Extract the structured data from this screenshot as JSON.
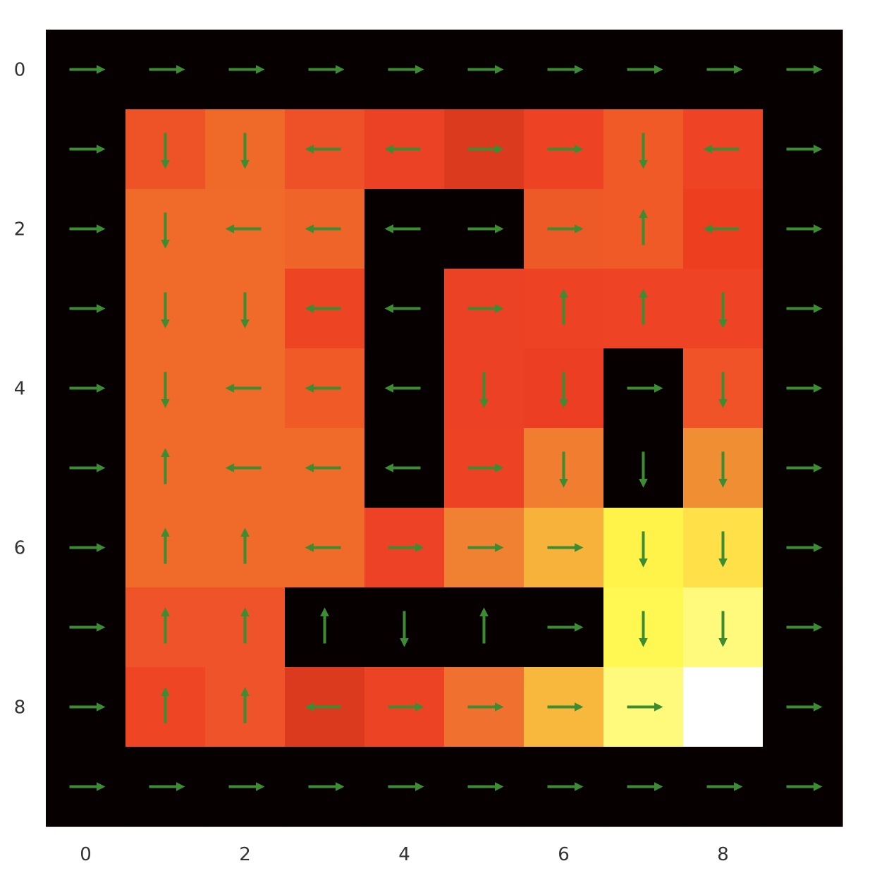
{
  "chart_data": {
    "type": "heatmap",
    "title": "",
    "xlabel": "",
    "ylabel": "",
    "grid": false,
    "rows": 10,
    "cols": 10,
    "x_ticks": [
      "0",
      "2",
      "4",
      "6",
      "8"
    ],
    "y_ticks": [
      "0",
      "2",
      "4",
      "6",
      "8"
    ],
    "arrow_color": "#3c8c32",
    "colors": [
      [
        "#070000",
        "#070000",
        "#070000",
        "#070000",
        "#070000",
        "#070000",
        "#070000",
        "#070000",
        "#070000",
        "#070000"
      ],
      [
        "#070000",
        "#ee5227",
        "#ef6a29",
        "#ee5128",
        "#eb4125",
        "#dc3a1f",
        "#ed4324",
        "#ef5a27",
        "#ee4425",
        "#070000"
      ],
      [
        "#070000",
        "#f06a29",
        "#f06a29",
        "#ef6529",
        "#070000",
        "#070000",
        "#ee5a27",
        "#ef5a27",
        "#ed3f20",
        "#070000"
      ],
      [
        "#070000",
        "#f06a29",
        "#f06a29",
        "#ed4424",
        "#070000",
        "#eb4125",
        "#ed4224",
        "#ee4325",
        "#ee4425",
        "#070000"
      ],
      [
        "#070000",
        "#f06a29",
        "#f06a29",
        "#ef5a27",
        "#070000",
        "#ec4124",
        "#eb3e22",
        "#070000",
        "#ef5327",
        "#070000"
      ],
      [
        "#070000",
        "#f06a29",
        "#f06a29",
        "#f06a29",
        "#070000",
        "#ed4224",
        "#f07d30",
        "#070000",
        "#f08e34",
        "#070000"
      ],
      [
        "#070000",
        "#f06a29",
        "#f06a29",
        "#f06a29",
        "#ed4225",
        "#f08032",
        "#f7b23c",
        "#fff349",
        "#ffe049",
        "#070000"
      ],
      [
        "#070000",
        "#ef5329",
        "#ef5329",
        "#070000",
        "#070000",
        "#070000",
        "#070000",
        "#fff852",
        "#fffa7b",
        "#070000"
      ],
      [
        "#070000",
        "#ee4525",
        "#ef5329",
        "#db3a1e",
        "#ed4325",
        "#f07030",
        "#f7b83d",
        "#fffa7b",
        "#ffffff",
        "#070000"
      ],
      [
        "#070000",
        "#070000",
        "#070000",
        "#070000",
        "#070000",
        "#070000",
        "#070000",
        "#070000",
        "#070000",
        "#070000"
      ]
    ],
    "arrows": [
      [
        "R",
        "R",
        "R",
        "R",
        "R",
        "R",
        "R",
        "R",
        "R",
        "R"
      ],
      [
        "R",
        "D",
        "D",
        "L",
        "L",
        "R",
        "R",
        "D",
        "L",
        "R"
      ],
      [
        "R",
        "D",
        "L",
        "L",
        "L",
        "R",
        "R",
        "U",
        "L",
        "R"
      ],
      [
        "R",
        "D",
        "D",
        "L",
        "L",
        "R",
        "U",
        "U",
        "D",
        "R"
      ],
      [
        "R",
        "D",
        "L",
        "L",
        "L",
        "D",
        "D",
        "R",
        "D",
        "R"
      ],
      [
        "R",
        "U",
        "L",
        "L",
        "L",
        "R",
        "D",
        "D",
        "D",
        "R"
      ],
      [
        "R",
        "U",
        "U",
        "L",
        "R",
        "R",
        "R",
        "D",
        "D",
        "R"
      ],
      [
        "R",
        "U",
        "U",
        "U",
        "D",
        "U",
        "R",
        "D",
        "D",
        "R"
      ],
      [
        "R",
        "U",
        "U",
        "L",
        "R",
        "R",
        "R",
        "R",
        "",
        "R"
      ],
      [
        "R",
        "R",
        "R",
        "R",
        "R",
        "R",
        "R",
        "R",
        "R",
        "R"
      ]
    ]
  }
}
